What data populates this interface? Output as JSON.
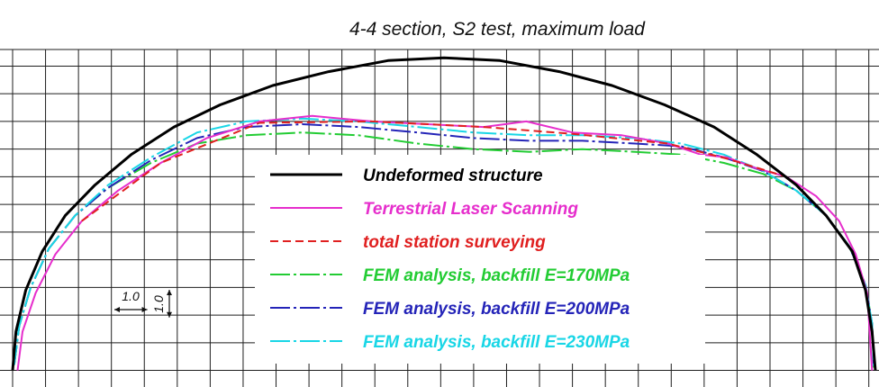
{
  "chart_data": {
    "type": "line",
    "title": "4-4 section, S2 test, maximum load",
    "xlabel": "",
    "ylabel": "",
    "grid": true,
    "legend_placement": "center",
    "xlim": [
      0,
      26.2
    ],
    "ylim": [
      -3.6,
      8.6
    ],
    "scale_labels": [
      "1.0",
      "1.0"
    ],
    "series": [
      {
        "name": "Undeformed structure",
        "color": "#000000",
        "dash": "solid",
        "x": [
          0,
          0.1,
          0.4,
          0.9,
          1.6,
          2.5,
          3.6,
          4.9,
          6.3,
          7.9,
          9.6,
          11.4,
          13.1,
          14.8,
          16.6,
          18.2,
          19.8,
          21.3,
          22.6,
          23.8,
          24.7,
          25.5,
          25.9,
          26.1,
          26.2
        ],
        "y": [
          -3.0,
          -1.6,
          -0.1,
          1.3,
          2.6,
          3.7,
          4.8,
          5.8,
          6.6,
          7.3,
          7.8,
          8.2,
          8.3,
          8.2,
          7.8,
          7.3,
          6.6,
          5.8,
          4.8,
          3.7,
          2.6,
          1.3,
          -0.1,
          -1.6,
          -3.0
        ]
      },
      {
        "name": "Terrestrial Laser Scanning",
        "color": "#e62ecc",
        "dash": "solid",
        "x": [
          0.15,
          0.3,
          0.7,
          1.3,
          2.1,
          3.2,
          4.5,
          5.9,
          7.5,
          9.1,
          10.9,
          12.6,
          14.3,
          15.6,
          17.0,
          18.5,
          19.9,
          20.9,
          21.7,
          22.6,
          23.5,
          24.4,
          25.1,
          25.6,
          25.95,
          26.1
        ],
        "y": [
          -3.0,
          -1.6,
          -0.2,
          1.2,
          2.4,
          3.5,
          4.5,
          5.4,
          6.0,
          6.2,
          6.0,
          5.9,
          5.8,
          6.0,
          5.6,
          5.5,
          5.2,
          4.8,
          4.7,
          4.3,
          4.0,
          3.3,
          2.4,
          1.2,
          -0.2,
          -3.0
        ]
      },
      {
        "name": "total station surveying",
        "color": "#e02020",
        "dash": "dashed",
        "x": [
          2.1,
          4.5,
          7.5,
          10.9,
          14.3,
          17.0,
          19.9,
          21.7,
          23.5
        ],
        "y": [
          2.4,
          4.5,
          5.95,
          6.0,
          5.8,
          5.55,
          5.2,
          4.65,
          4.0
        ]
      },
      {
        "name": "FEM analysis, backfill E=170MPa",
        "color": "#22cc33",
        "dash": "dashdot",
        "x": [
          0.05,
          0.2,
          0.55,
          1.1,
          1.9,
          2.9,
          4.2,
          5.6,
          7.1,
          8.8,
          10.5,
          12.3,
          14.0,
          15.7,
          17.3,
          18.9,
          20.3,
          21.6,
          22.8,
          23.8,
          24.7,
          25.4,
          25.9,
          26.1,
          26.15
        ],
        "y": [
          -2.8,
          -1.4,
          0.0,
          1.4,
          2.6,
          3.6,
          4.5,
          5.2,
          5.5,
          5.6,
          5.5,
          5.2,
          5.0,
          4.9,
          5.0,
          4.9,
          4.8,
          4.5,
          4.1,
          3.5,
          2.6,
          1.5,
          0.1,
          -1.3,
          -2.9
        ]
      },
      {
        "name": "FEM analysis, backfill E=200MPa",
        "color": "#2424b8",
        "dash": "dashdot",
        "x": [
          0.05,
          0.2,
          0.55,
          1.1,
          1.9,
          2.9,
          4.2,
          5.6,
          7.1,
          8.8,
          10.5,
          12.3,
          14.0,
          15.7,
          17.3,
          18.9,
          20.3,
          21.6,
          22.8,
          23.8,
          24.7,
          25.4,
          25.9,
          26.1,
          26.15
        ],
        "y": [
          -2.8,
          -1.4,
          0.0,
          1.4,
          2.6,
          3.6,
          4.6,
          5.4,
          5.8,
          5.9,
          5.8,
          5.6,
          5.4,
          5.3,
          5.3,
          5.2,
          5.1,
          4.7,
          4.2,
          3.5,
          2.6,
          1.5,
          0.1,
          -1.3,
          -2.9
        ]
      },
      {
        "name": "FEM analysis, backfill E=230MPa",
        "color": "#19d6e6",
        "dash": "dashdot",
        "x": [
          0.05,
          0.2,
          0.55,
          1.1,
          1.9,
          2.9,
          4.2,
          5.6,
          7.1,
          8.8,
          10.5,
          12.3,
          14.0,
          15.7,
          17.3,
          18.9,
          20.3,
          21.6,
          22.8,
          23.8,
          24.7,
          25.4,
          25.9,
          26.1,
          26.15
        ],
        "y": [
          -2.8,
          -1.4,
          0.0,
          1.4,
          2.6,
          3.7,
          4.7,
          5.6,
          6.0,
          6.1,
          6.0,
          5.8,
          5.6,
          5.5,
          5.5,
          5.4,
          5.2,
          4.8,
          4.2,
          3.5,
          2.6,
          1.5,
          0.1,
          -1.3,
          -2.9
        ]
      }
    ]
  }
}
